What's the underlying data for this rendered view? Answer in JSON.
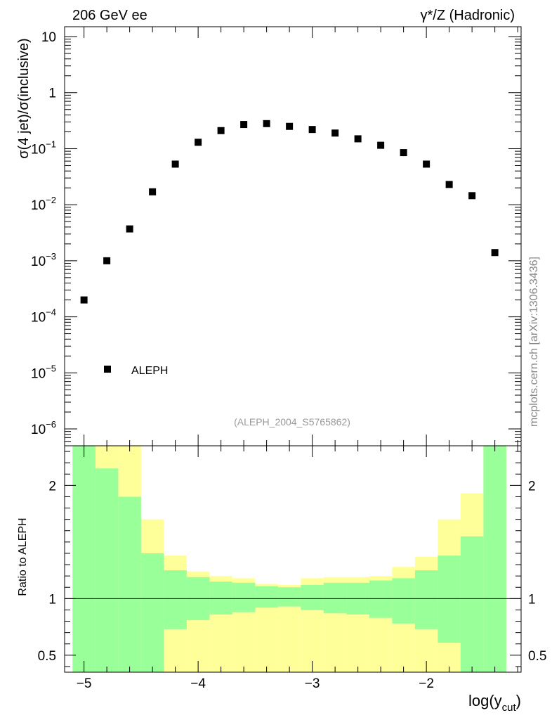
{
  "header": {
    "left": "206 GeV ee",
    "right": "γ*/Z (Hadronic)"
  },
  "side_label": "mcplots.cern.ch [arXiv:1306.3436]",
  "watermark": "(ALEPH_2004_S5765862)",
  "chart_data": [
    {
      "type": "scatter",
      "panel": "main",
      "ylabel": "σ(4 jet)/σ(inclusive)",
      "yscale": "log",
      "ylim": [
        5e-07,
        15
      ],
      "xlim": [
        -5.17,
        -1.17
      ],
      "yticks": [
        {
          "v": 1e-06,
          "base": "10",
          "exp": "−6"
        },
        {
          "v": 1e-05,
          "base": "10",
          "exp": "−5"
        },
        {
          "v": 0.0001,
          "base": "10",
          "exp": "−4"
        },
        {
          "v": 0.001,
          "base": "10",
          "exp": "−3"
        },
        {
          "v": 0.01,
          "base": "10",
          "exp": "−2"
        },
        {
          "v": 0.1,
          "base": "10",
          "exp": "−1"
        },
        {
          "v": 1,
          "base": "1",
          "exp": ""
        },
        {
          "v": 10,
          "base": "10",
          "exp": ""
        }
      ],
      "legend": {
        "label": "ALEPH",
        "position": "bottom-left"
      },
      "series": [
        {
          "name": "ALEPH",
          "color": "#000000",
          "x": [
            -5.0,
            -4.8,
            -4.6,
            -4.4,
            -4.2,
            -4.0,
            -3.8,
            -3.6,
            -3.4,
            -3.2,
            -3.0,
            -2.8,
            -2.6,
            -2.4,
            -2.2,
            -2.0,
            -1.8,
            -1.6,
            -1.4
          ],
          "y": [
            0.0002,
            0.001,
            0.0037,
            0.017,
            0.053,
            0.13,
            0.21,
            0.27,
            0.28,
            0.25,
            0.22,
            0.19,
            0.15,
            0.115,
            0.085,
            0.053,
            0.023,
            0.0145,
            0.0014
          ]
        }
      ]
    },
    {
      "type": "area",
      "panel": "ratio",
      "ylabel": "Ratio to ALEPH",
      "xlabel": "log(y_cut)",
      "xlabel_base": "log(y",
      "xlabel_sub": "cut",
      "xlabel_close": ")",
      "ylim": [
        0.35,
        2.35
      ],
      "xlim": [
        -5.17,
        -1.17
      ],
      "xticks": [
        {
          "v": -5,
          "label": "−5"
        },
        {
          "v": -4,
          "label": "−4"
        },
        {
          "v": -3,
          "label": "−3"
        },
        {
          "v": -2,
          "label": "−2"
        }
      ],
      "yticks": [
        {
          "v": 0.5,
          "label": "0.5"
        },
        {
          "v": 1,
          "label": "1"
        },
        {
          "v": 2,
          "label": "2"
        }
      ],
      "colors": {
        "stat_band": "#99ff99",
        "total_band": "#ffff99",
        "reference_line": "#000000"
      },
      "bin_edges": [
        -5.1,
        -4.9,
        -4.7,
        -4.5,
        -4.3,
        -4.1,
        -3.9,
        -3.7,
        -3.5,
        -3.3,
        -3.1,
        -2.9,
        -2.7,
        -2.5,
        -2.3,
        -2.1,
        -1.9,
        -1.7,
        -1.5,
        -1.3
      ],
      "total_band": {
        "upper": [
          2.35,
          2.35,
          2.35,
          1.7,
          1.38,
          1.24,
          1.2,
          1.18,
          1.13,
          1.12,
          1.18,
          1.19,
          1.19,
          1.2,
          1.28,
          1.37,
          1.7,
          1.93,
          2.35
        ],
        "lower": [
          0.35,
          0.35,
          0.35,
          0.73,
          0.31,
          0.31,
          0.31,
          0.31,
          0.31,
          0.31,
          0.31,
          0.31,
          0.31,
          0.31,
          0.31,
          0.31,
          0.31,
          0.31,
          0.35
        ]
      },
      "stat_band": {
        "upper": [
          2.35,
          2.15,
          1.9,
          1.4,
          1.25,
          1.19,
          1.15,
          1.14,
          1.11,
          1.1,
          1.12,
          1.14,
          1.14,
          1.16,
          1.18,
          1.25,
          1.38,
          1.55,
          2.35
        ],
        "lower": [
          0.35,
          0.35,
          0.35,
          0.35,
          0.73,
          0.81,
          0.86,
          0.88,
          0.92,
          0.93,
          0.9,
          0.87,
          0.86,
          0.83,
          0.78,
          0.73,
          0.61,
          0.35,
          0.35
        ]
      }
    }
  ]
}
